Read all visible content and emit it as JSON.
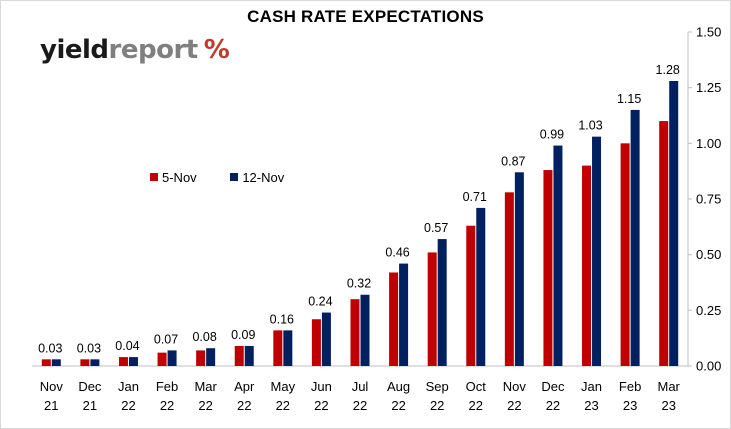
{
  "chart_data": {
    "type": "bar",
    "title": "CASH RATE EXPECTATIONS",
    "categories": [
      [
        "Nov",
        "21"
      ],
      [
        "Dec",
        "21"
      ],
      [
        "Jan",
        "22"
      ],
      [
        "Feb",
        "22"
      ],
      [
        "Mar",
        "22"
      ],
      [
        "Apr",
        "22"
      ],
      [
        "May",
        "22"
      ],
      [
        "Jun",
        "22"
      ],
      [
        "Jul",
        "22"
      ],
      [
        "Aug",
        "22"
      ],
      [
        "Sep",
        "22"
      ],
      [
        "Oct",
        "22"
      ],
      [
        "Nov",
        "22"
      ],
      [
        "Dec",
        "22"
      ],
      [
        "Jan",
        "23"
      ],
      [
        "Feb",
        "23"
      ],
      [
        "Mar",
        "23"
      ]
    ],
    "series": [
      {
        "name": "5-Nov",
        "color": "#c00000",
        "values": [
          0.03,
          0.03,
          0.04,
          0.06,
          0.07,
          0.09,
          0.16,
          0.21,
          0.3,
          0.42,
          0.51,
          0.63,
          0.78,
          0.88,
          0.9,
          1.0,
          1.1
        ]
      },
      {
        "name": "12-Nov",
        "color": "#002060",
        "values": [
          0.03,
          0.03,
          0.04,
          0.07,
          0.08,
          0.09,
          0.16,
          0.24,
          0.32,
          0.46,
          0.57,
          0.71,
          0.87,
          0.99,
          1.03,
          1.15,
          1.28
        ]
      }
    ],
    "data_labels": [
      "0.03",
      "0.03",
      "0.04",
      "0.07",
      "0.08",
      "0.09",
      "0.16",
      "0.24",
      "0.32",
      "0.46",
      "0.57",
      "0.71",
      "0.87",
      "0.99",
      "1.03",
      "1.15",
      "1.28"
    ],
    "ylim": [
      0,
      1.5
    ],
    "yticks": [
      "0.00",
      "0.25",
      "0.50",
      "0.75",
      "1.00",
      "1.25",
      "1.50"
    ],
    "y_axis_position": "right",
    "xlabel": "",
    "ylabel": "",
    "grid": false,
    "legend_position": "center-left"
  },
  "logo": {
    "part1": "yield",
    "part2": "report",
    "part3": "%"
  }
}
